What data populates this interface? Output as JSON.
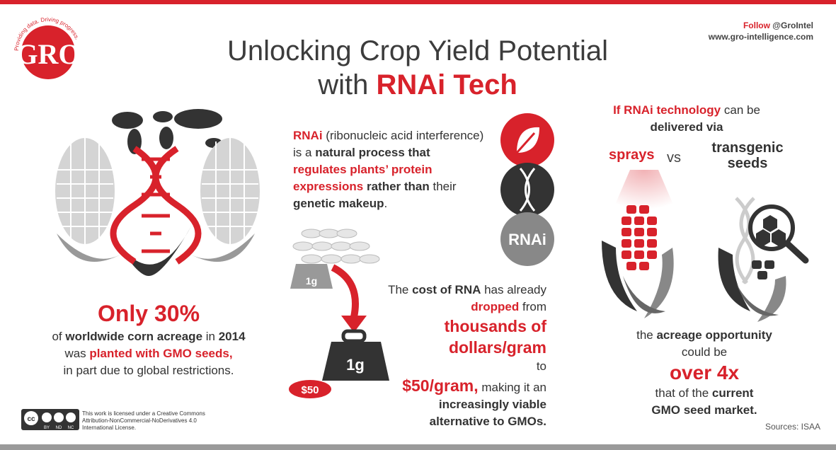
{
  "logo": {
    "letters": "GRO",
    "tagline": "Providing data. Driving progress."
  },
  "follow": {
    "label": "Follow",
    "handle": "@GroIntel",
    "url": "www.gro-intelligence.com"
  },
  "title": {
    "line1": "Unlocking Crop Yield Potential",
    "line2_prefix": "with ",
    "line2_highlight": "RNAi Tech"
  },
  "left": {
    "stat": "Only 30%",
    "t1": "of ",
    "t2": "worldwide corn acreage",
    "t3": " in ",
    "t4": "2014",
    "t5": "was ",
    "t6": "planted with GMO seeds,",
    "t7": "in part due to global restrictions."
  },
  "middle": {
    "rnai": "RNAi",
    "m1": " (ribonucleic acid interference) is a ",
    "m2": "natural process that ",
    "m3": "regulates plants’ protein expressions",
    "m4": " rather than",
    "m5": " their ",
    "m6": "genetic makeup",
    "m7": ".",
    "icon_label": "RNAi"
  },
  "weights": {
    "small": "1g",
    "big": "1g",
    "price": "$50"
  },
  "cost": {
    "c1": "The ",
    "c2": "cost of RNA",
    "c3": " has already ",
    "c4": "dropped",
    "c5": " from",
    "c6": "thousands of dollars/gram",
    "c7": " to",
    "c8": "$50/gram,",
    "c9": " making it an ",
    "c10": "increasingly viable alternative to GMOs."
  },
  "right": {
    "r1": "If RNAi technology",
    "r2": " can be ",
    "r3": "delivered via",
    "sprays": "sprays",
    "vs": "vs",
    "transgenic1": "transgenic",
    "transgenic2": "seeds",
    "b1": "the ",
    "b2": "acreage opportunity",
    "b3": "could be",
    "b4": "over 4x",
    "b5": "that of the ",
    "b6": "current",
    "b7": "GMO seed market."
  },
  "license": {
    "badge": "cc",
    "b_by": "BY",
    "b_nd": "ND",
    "b_nc": "NC",
    "text": "This work is licensed under a Creative Commons Attribution-NonCommercial-NoDerivatives 4.0 International License."
  },
  "sources": "Sources: ISAA",
  "colors": {
    "accent": "#d8222b",
    "dark": "#333333",
    "gray": "#9a9a9a"
  }
}
